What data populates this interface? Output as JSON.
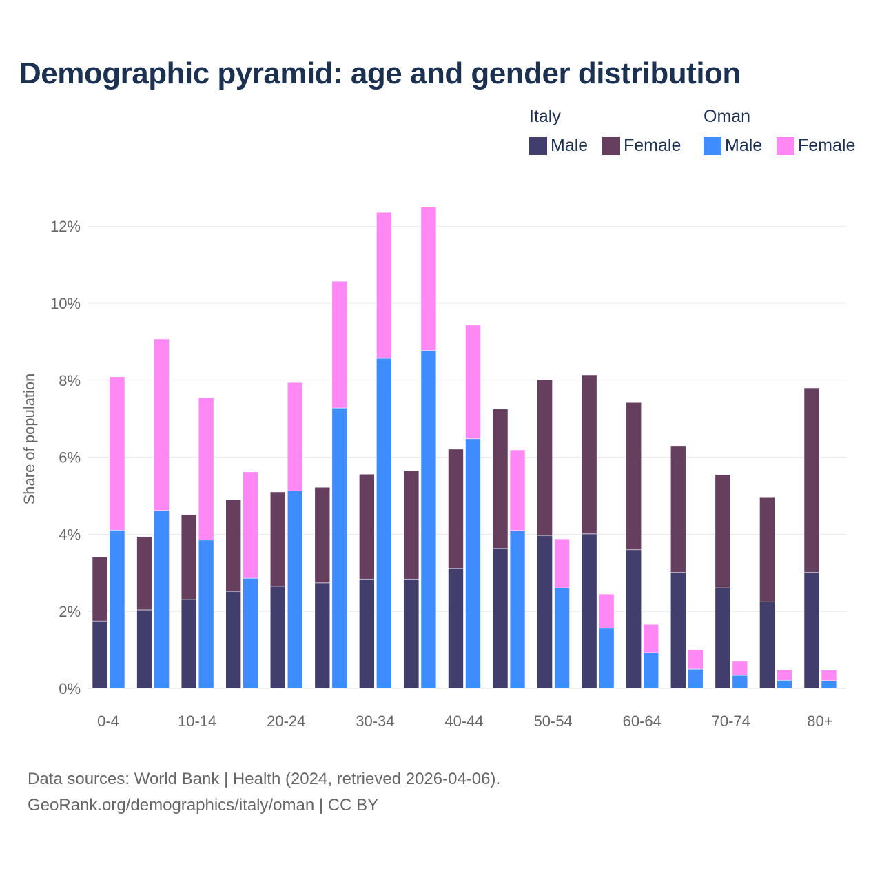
{
  "colors": {
    "italy_male": "#413e6e",
    "italy_female": "#663f5f",
    "oman_male": "#3f8cff",
    "oman_female": "#ff88f5"
  },
  "chart_data": {
    "type": "bar",
    "title": "Demographic pyramid: age and gender distribution",
    "ylabel": "Share of population",
    "xlabel": "",
    "ylim": [
      0,
      12.5
    ],
    "yticks": [
      0,
      2,
      4,
      6,
      8,
      10,
      12
    ],
    "ytick_labels": [
      "0%",
      "2%",
      "4%",
      "6%",
      "8%",
      "10%",
      "12%"
    ],
    "grid": true,
    "legend_position": "top-right",
    "stacked": true,
    "categories": [
      "0-4",
      "5-9",
      "10-14",
      "15-19",
      "20-24",
      "25-29",
      "30-34",
      "35-39",
      "40-44",
      "45-49",
      "50-54",
      "55-59",
      "60-64",
      "65-69",
      "70-74",
      "75-79",
      "80+"
    ],
    "xtick_labels": [
      "0-4",
      "",
      "10-14",
      "",
      "20-24",
      "",
      "30-34",
      "",
      "40-44",
      "",
      "50-54",
      "",
      "60-64",
      "",
      "70-74",
      "",
      "80+"
    ],
    "groups": [
      {
        "name": "Italy",
        "series": [
          {
            "name": "Male",
            "values": [
              1.75,
              2.04,
              2.31,
              2.52,
              2.65,
              2.74,
              2.84,
              2.84,
              3.11,
              3.63,
              3.97,
              4.01,
              3.6,
              3.01,
              2.61,
              2.25,
              3.01
            ]
          },
          {
            "name": "Female",
            "values": [
              1.67,
              1.9,
              2.2,
              2.38,
              2.45,
              2.48,
              2.72,
              2.81,
              3.1,
              3.62,
              4.04,
              4.13,
              3.82,
              3.29,
              2.94,
              2.72,
              4.79
            ]
          }
        ]
      },
      {
        "name": "Oman",
        "series": [
          {
            "name": "Male",
            "values": [
              4.11,
              4.62,
              3.85,
              2.86,
              5.13,
              7.28,
              8.57,
              8.77,
              6.48,
              4.1,
              2.61,
              1.56,
              0.93,
              0.5,
              0.34,
              0.21,
              0.2
            ]
          },
          {
            "name": "Female",
            "values": [
              3.98,
              4.45,
              3.7,
              2.76,
              2.81,
              3.29,
              3.79,
              3.73,
              2.95,
              2.09,
              1.27,
              0.89,
              0.73,
              0.5,
              0.36,
              0.27,
              0.27
            ]
          }
        ]
      }
    ]
  },
  "legend": {
    "italy": "Italy",
    "oman": "Oman",
    "male": "Male",
    "female": "Female"
  },
  "source": {
    "line1": "Data sources: World Bank | Health (2024, retrieved 2026-04-06).",
    "line2": "GeoRank.org/demographics/italy/oman | CC BY"
  }
}
